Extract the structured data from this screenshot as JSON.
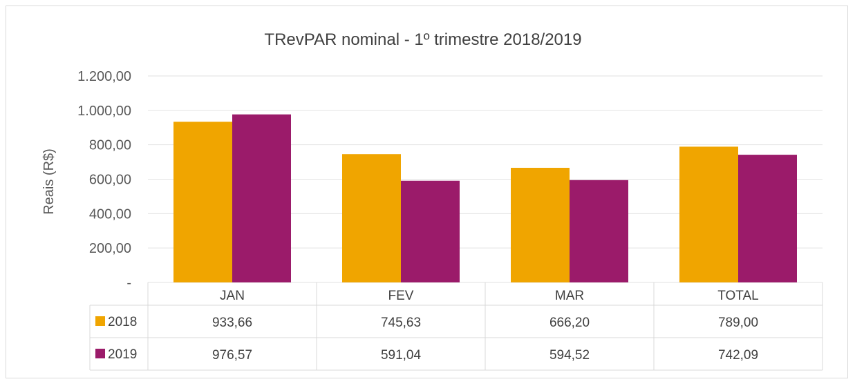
{
  "chart_data": {
    "type": "bar",
    "title": "TRevPAR nominal - 1º trimestre 2018/2019",
    "ylabel": "Reais (R$)",
    "xlabel": "",
    "categories": [
      "JAN",
      "FEV",
      "MAR",
      "TOTAL"
    ],
    "ylim": [
      0,
      1200
    ],
    "yticks": [
      0,
      200,
      400,
      600,
      800,
      1000,
      1200
    ],
    "ytick_labels": [
      "-",
      "200,00",
      "400,00",
      "600,00",
      "800,00",
      "1.000,00",
      "1.200,00"
    ],
    "grid": true,
    "legend": "data-table",
    "series": [
      {
        "name": "2018",
        "color": "#f0a500",
        "values": [
          933.66,
          745.63,
          666.2,
          789.0
        ],
        "labels": [
          "933,66",
          "745,63",
          "666,20",
          "789,00"
        ]
      },
      {
        "name": "2019",
        "color": "#9b1b6a",
        "values": [
          976.57,
          591.04,
          594.52,
          742.09
        ],
        "labels": [
          "976,57",
          "591,04",
          "594,52",
          "742,09"
        ]
      }
    ]
  }
}
